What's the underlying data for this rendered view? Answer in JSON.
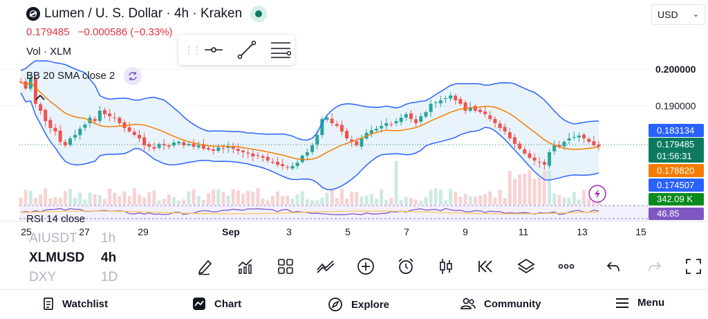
{
  "header": {
    "title": "Lumen / U. S. Dollar · 4h · Kraken",
    "price": "0.179485",
    "change": "−0.000586 (−0.33%)"
  },
  "indicators": {
    "volume": "Vol · XLM",
    "bb": "BB 20 SMA close 2",
    "rsi": "RSI 14 close"
  },
  "currency": "USD",
  "y_axis": {
    "labels": [
      "0.200000",
      "0.190000"
    ]
  },
  "price_tags": {
    "bb_upper": "0.183134",
    "last_price": "0.179485",
    "countdown": "01:56:31",
    "sma": "0.178820",
    "bb_lower": "0.174507",
    "volume": "342.09 K",
    "rsi": "46.85"
  },
  "x_axis": {
    "labels": [
      {
        "text": "25",
        "x": 38
      },
      {
        "text": "27",
        "x": 122
      },
      {
        "text": "29",
        "x": 207
      },
      {
        "text": "Sep",
        "x": 334
      },
      {
        "text": "3",
        "x": 418
      },
      {
        "text": "5",
        "x": 503
      },
      {
        "text": "7",
        "x": 588
      },
      {
        "text": "9",
        "x": 673
      },
      {
        "text": "11",
        "x": 757
      },
      {
        "text": "13",
        "x": 842
      },
      {
        "text": "15",
        "x": 927
      }
    ]
  },
  "colors": {
    "up": "#26a69a",
    "down": "#ef5350",
    "bb_band": "#2962ff",
    "sma": "#f57c00",
    "rsi": "#7e57c2",
    "tag_blue": "#2962ff",
    "tag_green": "#0d7a5f",
    "tag_orange": "#f57c00",
    "tag_vol": "#0b8a1f"
  },
  "symbols": {
    "prev": "AIUSDT",
    "current": "XLMUSD",
    "next": "DXY"
  },
  "intervals": {
    "prev": "1h",
    "current": "4h",
    "next": "1D"
  },
  "toolbar_icons": [
    "pencil-icon",
    "indicators-icon",
    "grid-layout-icon",
    "compare-icon",
    "add-icon",
    "alert-clock-icon",
    "candle-type-icon",
    "replay-icon",
    "layers-icon",
    "more-icon",
    "undo-icon",
    "redo-icon",
    "fullscreen-icon"
  ],
  "nav": {
    "watchlist": "Watchlist",
    "chart": "Chart",
    "explore": "Explore",
    "community": "Community",
    "menu": "Menu"
  }
}
